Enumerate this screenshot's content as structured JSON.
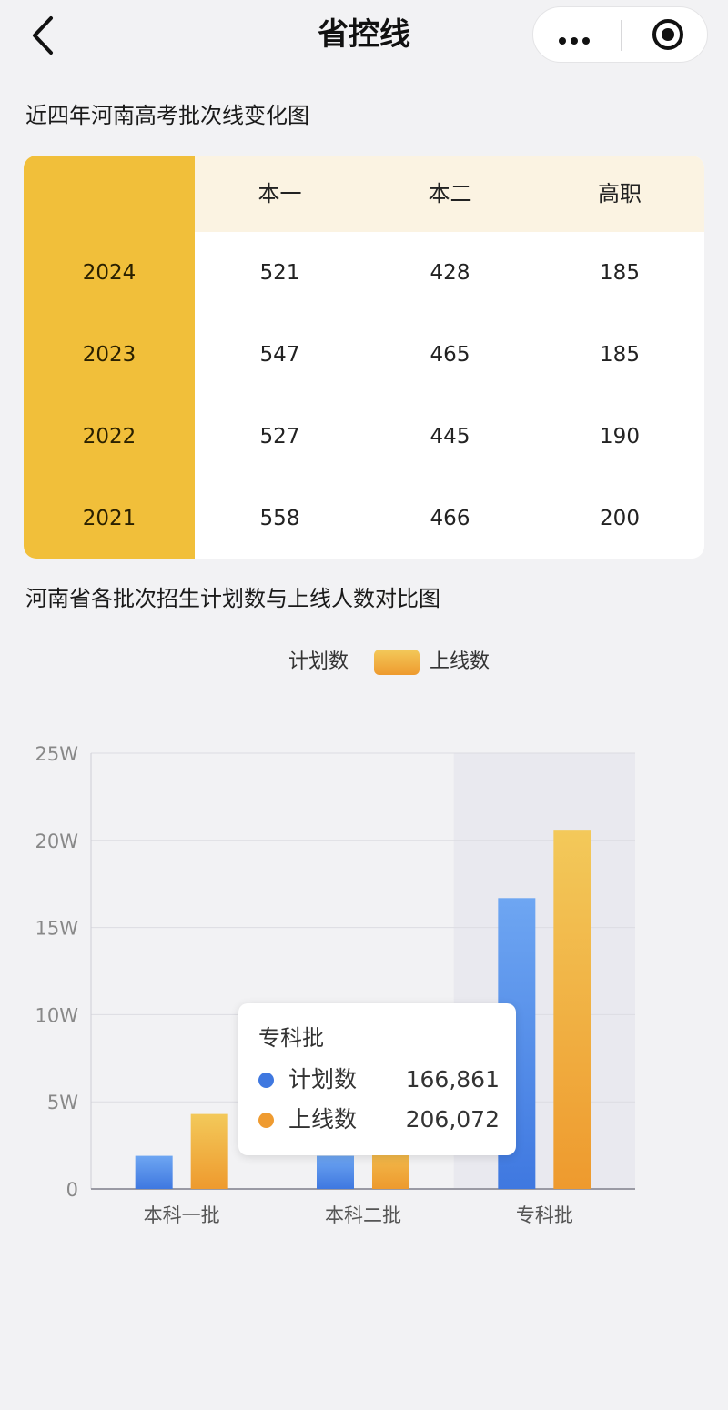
{
  "header": {
    "title": "省控线",
    "back_icon": "chevron-left-icon",
    "more_icon": "more-dots-icon",
    "close_icon": "target-close-icon"
  },
  "table_section": {
    "title": "近四年河南高考批次线变化图",
    "columns": [
      "本一",
      "本二",
      "高职"
    ],
    "rows": [
      {
        "year": "2024",
        "values": [
          "521",
          "428",
          "185"
        ]
      },
      {
        "year": "2023",
        "values": [
          "547",
          "465",
          "185"
        ]
      },
      {
        "year": "2022",
        "values": [
          "527",
          "445",
          "190"
        ]
      },
      {
        "year": "2021",
        "values": [
          "558",
          "466",
          "200"
        ]
      }
    ],
    "colors": {
      "year_column": "#f1bf3a",
      "header_row": "#fbf3e2"
    }
  },
  "chart_section": {
    "title": "河南省各批次招生计划数与上线人数对比图",
    "legend": [
      "计划数",
      "上线数"
    ],
    "tooltip": {
      "title": "专科批",
      "rows": [
        {
          "name": "计划数",
          "value": "166,861",
          "color": "#3f78e0"
        },
        {
          "name": "上线数",
          "value": "206,072",
          "color": "#ef9b30"
        }
      ]
    }
  },
  "chart_data": {
    "type": "bar",
    "categories": [
      "本科一批",
      "本科二批",
      "专科批"
    ],
    "series": [
      {
        "name": "计划数",
        "values": [
          19000,
          19000,
          166861
        ],
        "color": "#3f78e0"
      },
      {
        "name": "上线数",
        "values": [
          43000,
          30000,
          206072
        ],
        "color": "#ef9b30"
      }
    ],
    "y_ticks": [
      "0",
      "5W",
      "10W",
      "15W",
      "20W",
      "25W"
    ],
    "ylim": [
      0,
      250000
    ],
    "grid": true,
    "legend_position": "top-center",
    "highlighted_category": "专科批"
  }
}
